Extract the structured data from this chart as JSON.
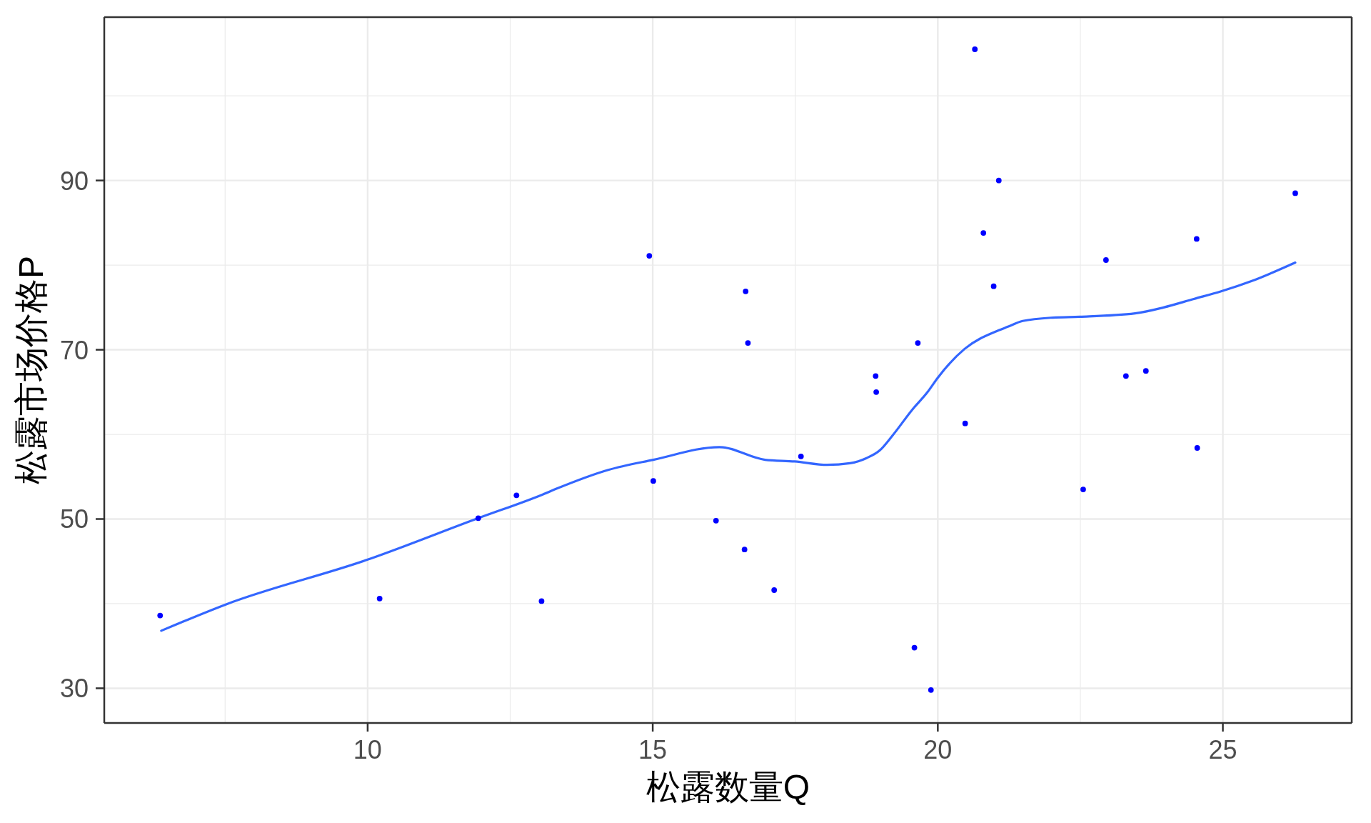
{
  "chart_data": {
    "type": "scatter",
    "xlabel": "松露数量Q",
    "ylabel": "松露市场价格P",
    "xlim": [
      5.38,
      27.26
    ],
    "ylim": [
      25.9,
      109.3
    ],
    "xticks": [
      {
        "value": 7.5,
        "label": null
      },
      10,
      {
        "value": 12.5,
        "label": null
      },
      15,
      {
        "value": 17.5,
        "label": null
      },
      20,
      {
        "value": 22.5,
        "label": null
      },
      25
    ],
    "yticks": [
      30,
      {
        "value": 40,
        "label": null
      },
      50,
      {
        "value": 60,
        "label": null
      },
      70,
      {
        "value": 80,
        "label": null
      },
      90,
      {
        "value": 100,
        "label": null
      }
    ],
    "grid": true,
    "series": [
      {
        "marker": "circle",
        "color": "#0000ff",
        "x": [
          6.36,
          10.21,
          11.94,
          12.61,
          13.05,
          14.94,
          15.01,
          16.11,
          16.61,
          16.63,
          16.67,
          17.13,
          17.6,
          18.91,
          18.92,
          19.59,
          19.65,
          19.88,
          20.48,
          20.65,
          20.8,
          20.98,
          21.07,
          22.55,
          22.95,
          23.3,
          23.65,
          24.54,
          24.55,
          26.27
        ],
        "values": [
          38.6,
          40.6,
          50.1,
          52.8,
          40.3,
          81.1,
          54.5,
          49.8,
          46.4,
          76.9,
          70.8,
          41.6,
          57.4,
          66.9,
          65.0,
          34.8,
          70.8,
          29.8,
          61.3,
          105.5,
          83.8,
          77.5,
          90.0,
          53.5,
          80.6,
          66.9,
          67.5,
          83.1,
          58.4,
          88.5
        ]
      },
      {
        "type": "line",
        "marker": "none",
        "line_style": "solid",
        "color": "#3366ff",
        "x": [
          6.38,
          7.51,
          10.0,
          11.94,
          13.07,
          13.32,
          14.22,
          15.01,
          16.17,
          16.97,
          17.49,
          18.06,
          18.46,
          18.75,
          18.98,
          19.21,
          19.55,
          19.82,
          20.0,
          20.47,
          21.07,
          21.22,
          21.49,
          22.02,
          22.49,
          23.46,
          23.96,
          24.49,
          24.97,
          25.5,
          26.27
        ],
        "values": [
          36.8,
          39.9,
          45.2,
          50.1,
          52.9,
          53.6,
          55.8,
          57.0,
          58.5,
          57.0,
          56.8,
          56.4,
          56.6,
          57.2,
          58.1,
          59.9,
          62.9,
          65.0,
          66.7,
          70.1,
          72.3,
          72.7,
          73.4,
          73.8,
          73.9,
          74.3,
          75.0,
          76.0,
          76.9,
          78.1,
          80.3
        ]
      }
    ]
  }
}
